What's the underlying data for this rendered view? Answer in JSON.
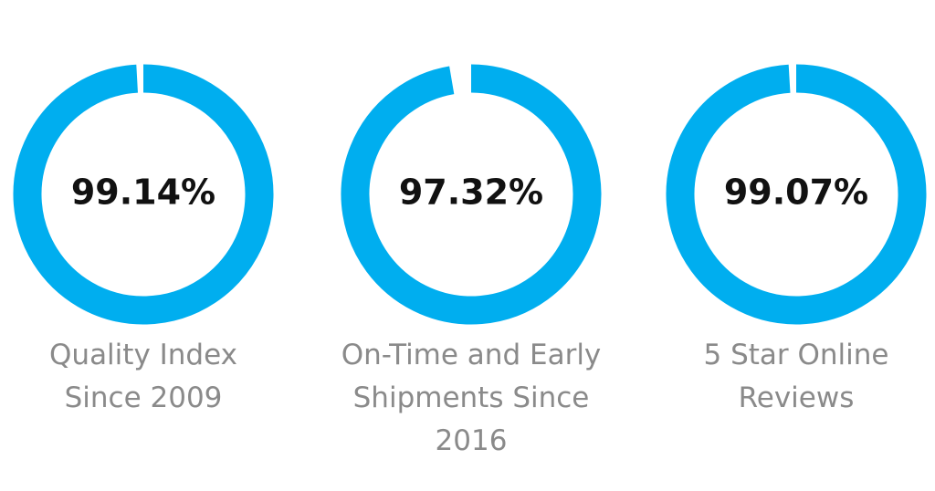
{
  "chart_data": [
    {
      "type": "gauge",
      "title": "Quality Index Since 2009",
      "values": [
        99.14
      ],
      "value_labels": [
        "99.14%"
      ],
      "ylim": [
        0,
        100
      ],
      "color": "#00aeef"
    },
    {
      "type": "gauge",
      "title": "On-Time and Early Shipments Since 2016",
      "values": [
        97.32
      ],
      "value_labels": [
        "97.32%"
      ],
      "ylim": [
        0,
        100
      ],
      "color": "#00aeef"
    },
    {
      "type": "gauge",
      "title": "5 Star Online Reviews",
      "values": [
        99.07
      ],
      "value_labels": [
        "99.07%"
      ],
      "ylim": [
        0,
        100
      ],
      "color": "#00aeef"
    }
  ]
}
